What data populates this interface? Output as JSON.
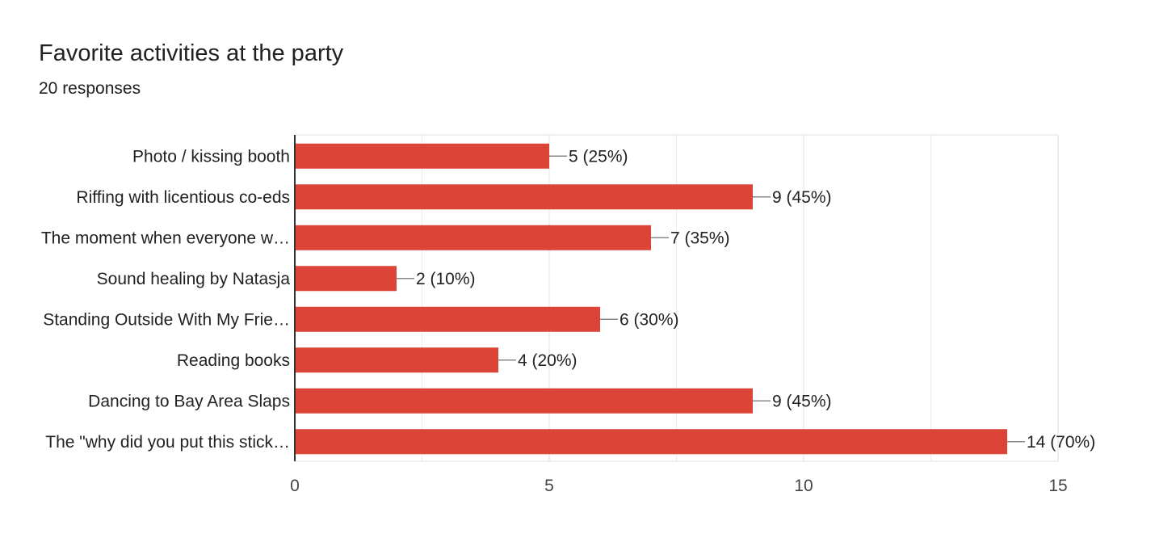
{
  "question": {
    "title": "Favorite activities at the party",
    "responses": "20 responses"
  },
  "colors": {
    "bar": "#db4437",
    "grid": "#ebebeb",
    "axis": "#333333",
    "connector": "#888888"
  },
  "chart_data": {
    "type": "bar",
    "orientation": "horizontal",
    "title": "Favorite activities at the party",
    "subtitle": "20 responses",
    "categories": [
      "Photo / kissing booth",
      "Riffing with licentious co-eds",
      "The moment when everyone w…",
      "Sound healing by Natasja",
      "Standing Outside With My Frie…",
      "Reading books",
      "Dancing to Bay Area Slaps",
      "The \"why did you put this stick…"
    ],
    "values": [
      5,
      9,
      7,
      2,
      6,
      4,
      9,
      14
    ],
    "value_labels": [
      "5 (25%)",
      "9 (45%)",
      "7 (35%)",
      "2 (10%)",
      "6 (30%)",
      "4 (20%)",
      "9 (45%)",
      "14 (70%)"
    ],
    "xlim": [
      0,
      15
    ],
    "xticks": [
      0,
      5,
      10,
      15
    ],
    "xtick_labels": [
      "0",
      "5",
      "10",
      "15"
    ],
    "grid": true
  }
}
